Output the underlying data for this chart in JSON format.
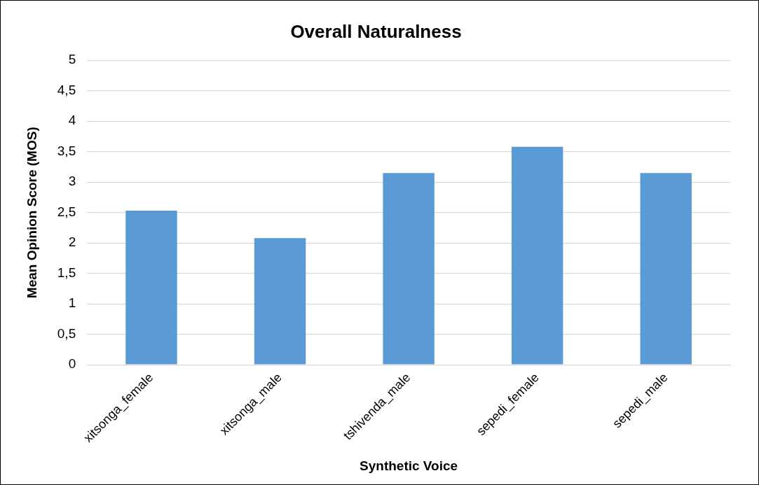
{
  "chart_data": {
    "type": "bar",
    "title": "Overall Naturalness",
    "xlabel": "Synthetic Voice",
    "ylabel": "Mean Opinion Score (MOS)",
    "categories": [
      "xitsonga_female",
      "xitsonga_male",
      "tshivenda_male",
      "sepedi_female",
      "sepedi_male"
    ],
    "series": [
      {
        "color": "#5b9bd5",
        "values": [
          2.53,
          2.08,
          3.15,
          3.58,
          3.15
        ]
      }
    ],
    "ylim": [
      0,
      5
    ],
    "yticks": [
      0,
      {
        "value": 0.5,
        "label": "0,5"
      },
      1,
      {
        "value": 1.5,
        "label": "1,5"
      },
      2,
      {
        "value": 2.5,
        "label": "2,5"
      },
      3,
      {
        "value": 3.5,
        "label": "3,5"
      },
      4,
      {
        "value": 4.5,
        "label": "4,5"
      },
      5
    ],
    "grid": "y",
    "legend": false
  }
}
